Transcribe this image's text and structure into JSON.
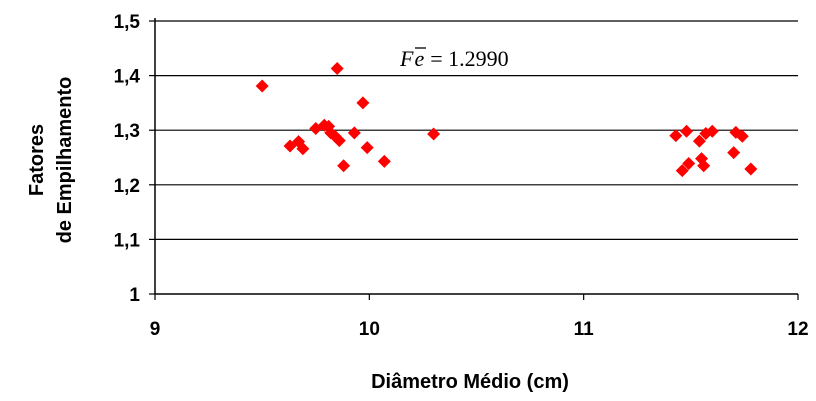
{
  "chart_data": {
    "type": "scatter",
    "title": "",
    "xlabel": "Diâmetro Médio (cm)",
    "ylabel_lines": [
      "Fatores",
      "de Empilhamento"
    ],
    "xlim": [
      9,
      12
    ],
    "ylim": [
      1.0,
      1.5
    ],
    "x_ticks": [
      9,
      10,
      11,
      12
    ],
    "y_ticks": [
      1.0,
      1.1,
      1.2,
      1.3,
      1.4,
      1.5
    ],
    "x_tick_labels": [
      "9",
      "10",
      "11",
      "12"
    ],
    "y_tick_labels": [
      "1",
      "1,1",
      "1,2",
      "1,3",
      "1,4",
      "1,5"
    ],
    "grid": "horizontal",
    "legend": "none",
    "marker": "diamond",
    "marker_color": "#ff0000",
    "annotation": {
      "symbol_base": "F",
      "symbol_sub": "e",
      "equals": "= 1.2990"
    },
    "points": [
      {
        "x": 9.5,
        "y": 1.381
      },
      {
        "x": 9.63,
        "y": 1.271
      },
      {
        "x": 9.67,
        "y": 1.279
      },
      {
        "x": 9.69,
        "y": 1.266
      },
      {
        "x": 9.75,
        "y": 1.303
      },
      {
        "x": 9.79,
        "y": 1.309
      },
      {
        "x": 9.81,
        "y": 1.307
      },
      {
        "x": 9.82,
        "y": 1.295
      },
      {
        "x": 9.84,
        "y": 1.289
      },
      {
        "x": 9.85,
        "y": 1.413
      },
      {
        "x": 9.86,
        "y": 1.281
      },
      {
        "x": 9.88,
        "y": 1.235
      },
      {
        "x": 9.93,
        "y": 1.295
      },
      {
        "x": 9.97,
        "y": 1.35
      },
      {
        "x": 9.99,
        "y": 1.268
      },
      {
        "x": 10.07,
        "y": 1.243
      },
      {
        "x": 10.3,
        "y": 1.293
      },
      {
        "x": 11.43,
        "y": 1.29
      },
      {
        "x": 11.46,
        "y": 1.226
      },
      {
        "x": 11.48,
        "y": 1.298
      },
      {
        "x": 11.49,
        "y": 1.239
      },
      {
        "x": 11.54,
        "y": 1.28
      },
      {
        "x": 11.55,
        "y": 1.248
      },
      {
        "x": 11.56,
        "y": 1.235
      },
      {
        "x": 11.57,
        "y": 1.294
      },
      {
        "x": 11.6,
        "y": 1.298
      },
      {
        "x": 11.7,
        "y": 1.259
      },
      {
        "x": 11.71,
        "y": 1.296
      },
      {
        "x": 11.74,
        "y": 1.289
      },
      {
        "x": 11.78,
        "y": 1.229
      }
    ]
  }
}
